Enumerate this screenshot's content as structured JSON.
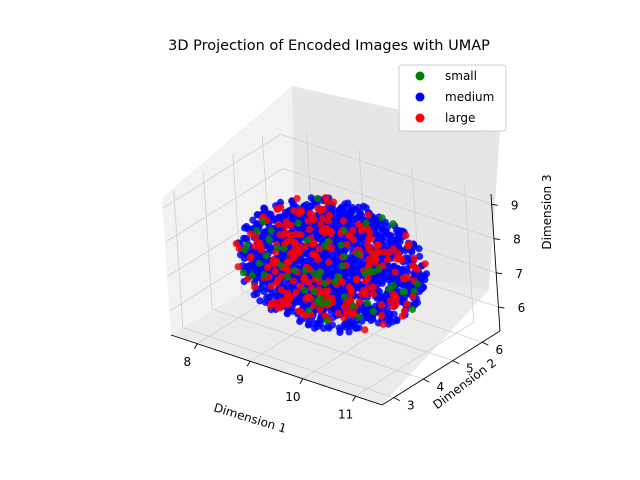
{
  "chart_data": {
    "type": "scatter",
    "projection": "3d",
    "title": "3D Projection of Encoded Images with UMAP",
    "xlabel": "Dimension 1",
    "ylabel": "Dimension 2",
    "zlabel": "Dimension 3",
    "xticks": [
      "8",
      "9",
      "10",
      "11"
    ],
    "yticks": [
      "3",
      "4",
      "5",
      "6"
    ],
    "zticks": [
      "6",
      "7",
      "8",
      "9"
    ],
    "xlim": [
      7.5,
      11.5
    ],
    "ylim": [
      2.6,
      6.6
    ],
    "zlim": [
      5.3,
      9.3
    ],
    "grid": true,
    "legend_position": "top-right",
    "point_cloud": {
      "shape": "ellipsoid",
      "center": {
        "x": 9.5,
        "y": 4.6,
        "z": 7.3
      },
      "radius": {
        "x": 1.6,
        "y": 1.6,
        "z": 1.6
      },
      "points_per_series": {
        "small": 60,
        "medium": 1600,
        "large": 260
      }
    },
    "series": [
      {
        "name": "small",
        "color": "#008000"
      },
      {
        "name": "medium",
        "color": "#0000ff"
      },
      {
        "name": "large",
        "color": "#ff0000"
      }
    ]
  }
}
